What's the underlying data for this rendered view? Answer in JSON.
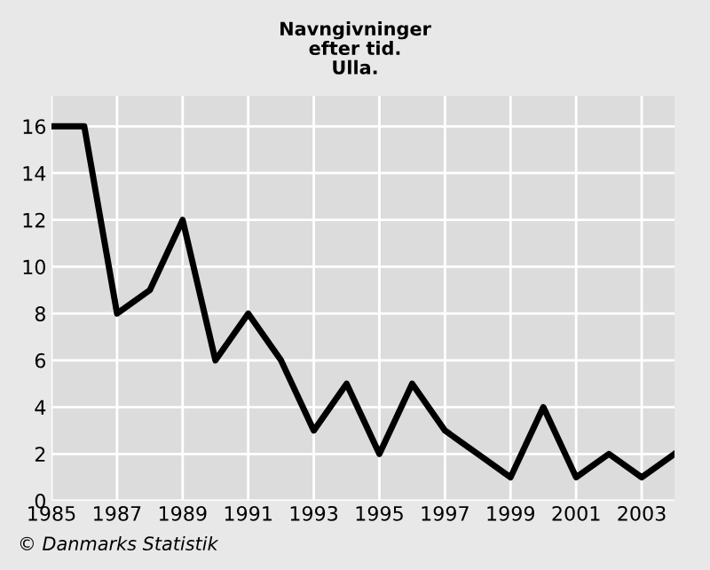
{
  "chart_data": {
    "type": "line",
    "title": "Navngivninger\nefter tid.\nUlla.",
    "x": [
      1985,
      1986,
      1987,
      1988,
      1989,
      1990,
      1991,
      1992,
      1993,
      1994,
      1995,
      1996,
      1997,
      1998,
      1999,
      2000,
      2001,
      2002,
      2003,
      2004
    ],
    "series": [
      {
        "color": "#000000",
        "values": [
          16,
          16,
          8,
          9,
          12,
          6,
          8,
          6,
          3,
          5,
          2,
          5,
          3,
          2,
          1,
          4,
          1,
          2,
          1,
          2
        ]
      }
    ],
    "xlim": [
      1985,
      2004
    ],
    "xticks": [
      1985,
      1987,
      1989,
      1991,
      1993,
      1995,
      1997,
      1999,
      2001,
      2003
    ],
    "ylim": [
      0,
      17.3
    ],
    "yticks": [
      0,
      2,
      4,
      6,
      8,
      10,
      12,
      14,
      16
    ],
    "grid": true,
    "legend": false,
    "marker": "none",
    "line_style": "solid",
    "annotations": [
      "© Danmarks Statistik"
    ]
  }
}
